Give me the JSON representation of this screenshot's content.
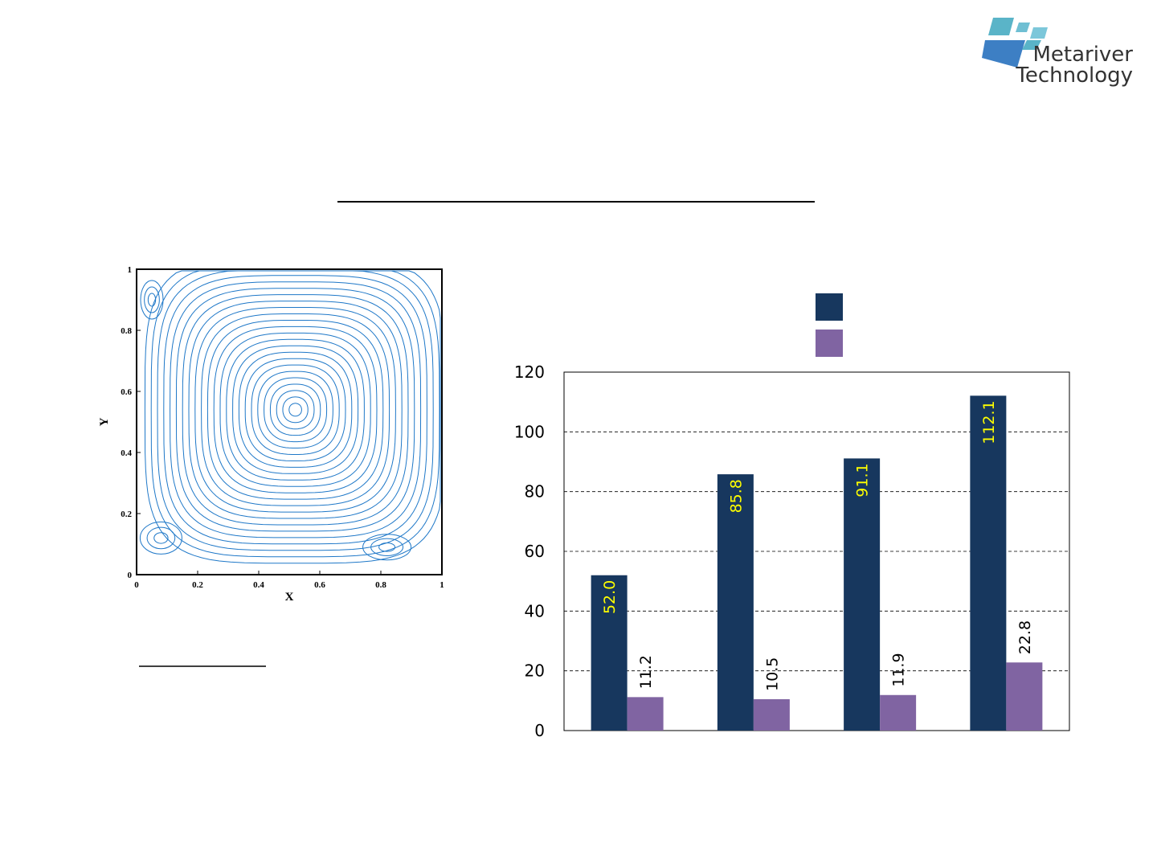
{
  "logo": {
    "line1": "Metariver",
    "line2": "Technology"
  },
  "chart_data": [
    {
      "type": "streamline",
      "x_label": "X",
      "y_label": "Y",
      "xlim": [
        0,
        1
      ],
      "ylim": [
        0,
        1
      ],
      "xticks": [
        0,
        0.2,
        0.4,
        0.6,
        0.8,
        1
      ],
      "yticks": [
        0,
        0.2,
        0.4,
        0.6,
        0.8,
        1
      ]
    },
    {
      "type": "bar",
      "categories": [
        null,
        null,
        null,
        null
      ],
      "series": [
        {
          "color": "#17375e",
          "values": [
            52.0,
            85.8,
            91.1,
            112.1
          ],
          "value_labels": [
            "52.0",
            "85.8",
            "91.1",
            "112.1"
          ],
          "label_color": "#ffff00"
        },
        {
          "color": "#8064a2",
          "values": [
            11.2,
            10.5,
            11.9,
            22.8
          ],
          "value_labels": [
            "11.2",
            "10.5",
            "11.9",
            "22.8"
          ],
          "label_color": "#000000"
        }
      ],
      "ylim": [
        0,
        120
      ],
      "yticks": [
        0,
        20,
        40,
        60,
        80,
        100,
        120
      ],
      "grid": true
    }
  ]
}
